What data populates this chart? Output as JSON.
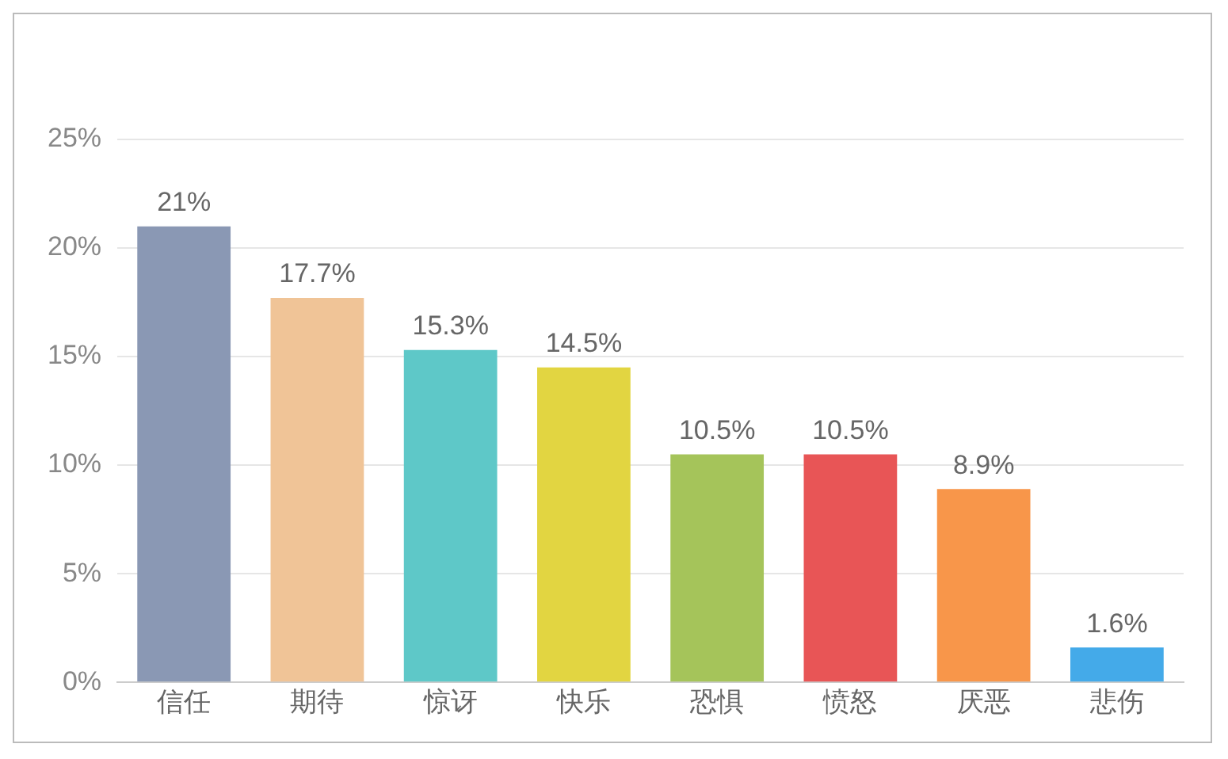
{
  "chart_data": {
    "type": "bar",
    "categories": [
      "信任",
      "期待",
      "惊讶",
      "快乐",
      "恐惧",
      "愤怒",
      "厌恶",
      "悲伤"
    ],
    "values": [
      21,
      17.7,
      15.3,
      14.5,
      10.5,
      10.5,
      8.9,
      1.6
    ],
    "colors": [
      "#8a98b4",
      "#f0c497",
      "#5ec8c8",
      "#e2d541",
      "#a5c45a",
      "#e85556",
      "#f8964a",
      "#44aae9"
    ],
    "value_labels": [
      "21%",
      "17.7%",
      "15.3%",
      "14.5%",
      "10.5%",
      "10.5%",
      "8.9%",
      "1.6%"
    ],
    "ylim": [
      0,
      25
    ],
    "yticks": [
      {
        "value": 0,
        "label": "0%"
      },
      {
        "value": 5,
        "label": "5%"
      },
      {
        "value": 10,
        "label": "10%"
      },
      {
        "value": 15,
        "label": "15%"
      },
      {
        "value": 20,
        "label": "20%"
      },
      {
        "value": 25,
        "label": "25%"
      }
    ],
    "grid": "y",
    "legend": false
  }
}
